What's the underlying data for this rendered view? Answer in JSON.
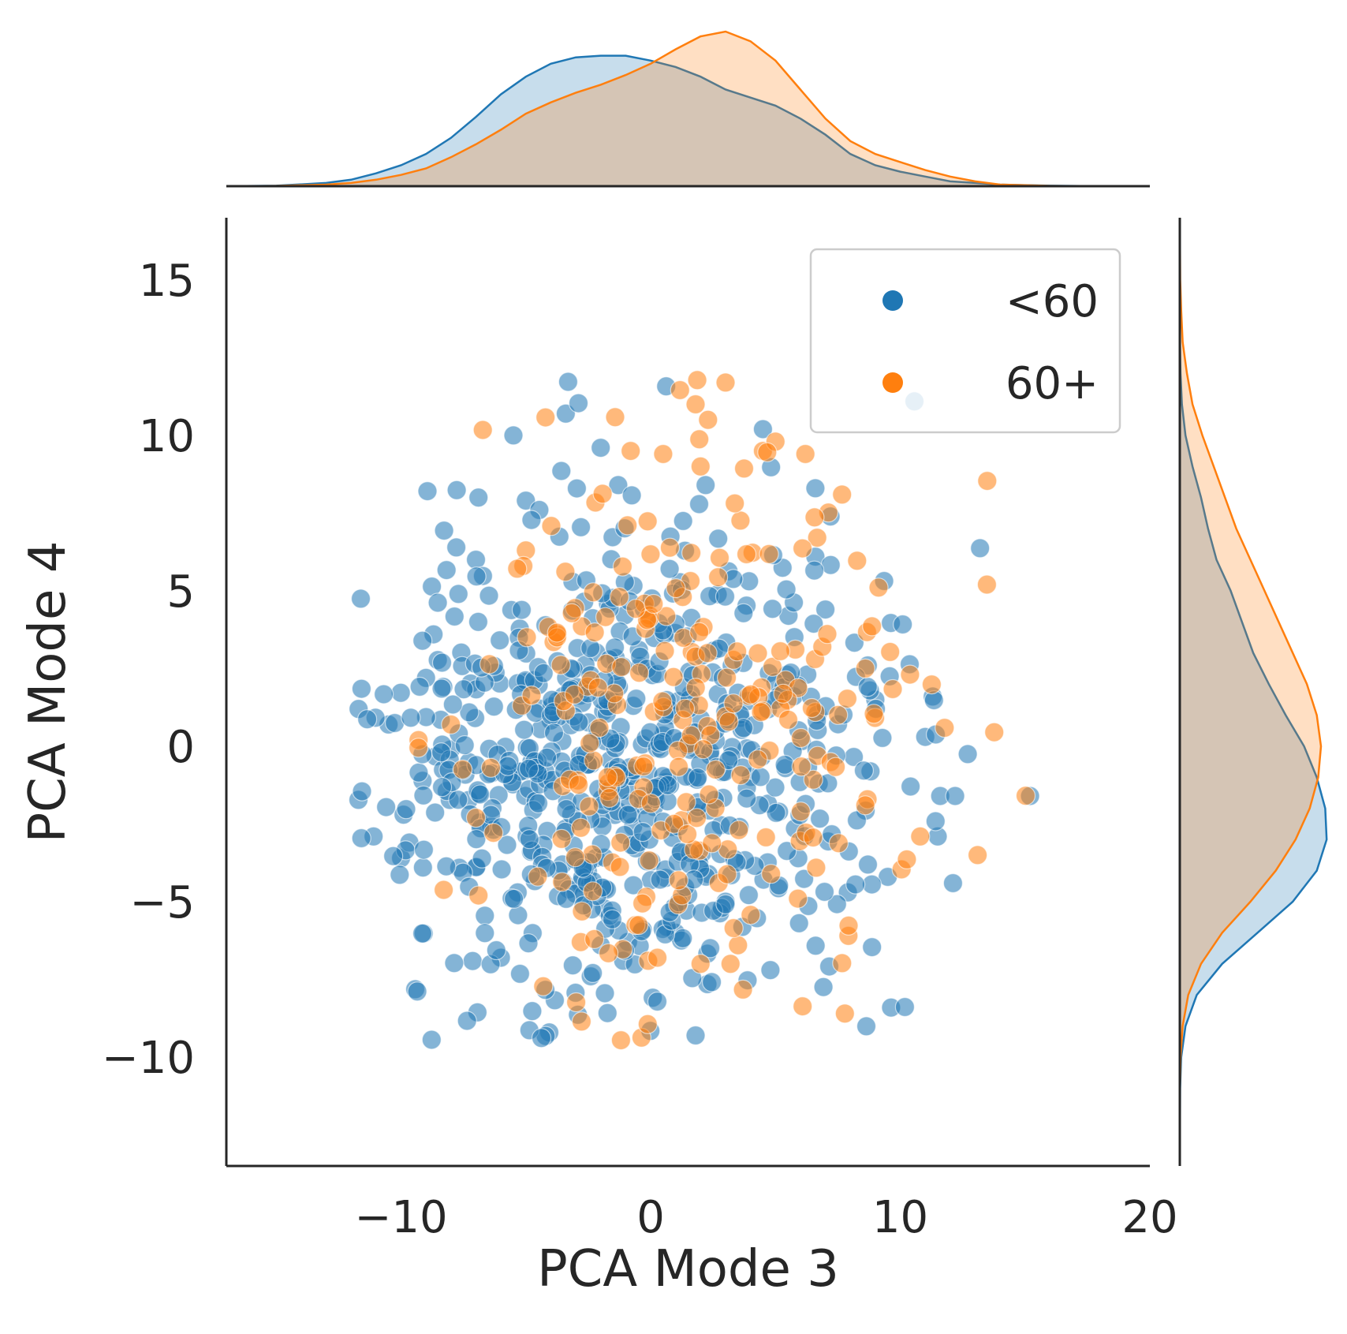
{
  "chart_data": {
    "type": "scatter",
    "subtype": "joint-plot-with-marginal-kde",
    "xlabel": "PCA Mode 3",
    "ylabel": "PCA Mode 4",
    "xlim": [
      -17,
      20
    ],
    "ylim": [
      -13.5,
      17
    ],
    "x_ticks": [
      -10,
      0,
      10,
      20
    ],
    "x_tick_labels": [
      "−10",
      "0",
      "10",
      "20"
    ],
    "y_ticks": [
      -10,
      -5,
      0,
      5,
      10,
      15
    ],
    "y_tick_labels": [
      "−10",
      "−5",
      "0",
      "5",
      "10",
      "15"
    ],
    "grid": false,
    "legend_position": "top-right",
    "point_alpha": 0.55,
    "series": [
      {
        "name": "<60",
        "color": "#1f77b4",
        "n_points": 700,
        "x_mean": -1.3,
        "x_sd": 5.0,
        "y_mean": -0.6,
        "y_sd": 3.9,
        "seed": 11,
        "points": [
          [
            -11.7,
            1.2
          ],
          [
            -10.5,
            0.7
          ],
          [
            -10.0,
            -3.6
          ],
          [
            -11.1,
            -2.9
          ],
          [
            -9.9,
            -2.2
          ],
          [
            -9.0,
            2.2
          ],
          [
            -8.7,
            3.6
          ],
          [
            -8.0,
            -0.1
          ],
          [
            -7.7,
            4.9
          ],
          [
            -7.0,
            6.0
          ],
          [
            -6.9,
            8.0
          ],
          [
            -5.5,
            10.0
          ],
          [
            -3.4,
            10.7
          ],
          [
            -2.0,
            9.6
          ],
          [
            -1.3,
            8.4
          ],
          [
            4.5,
            10.2
          ],
          [
            6.6,
            8.3
          ],
          [
            2.2,
            8.4
          ],
          [
            6.6,
            6.1
          ],
          [
            7.0,
            4.4
          ],
          [
            8.7,
            2.6
          ],
          [
            9.0,
            1.5
          ],
          [
            11.3,
            1.6
          ],
          [
            11.0,
            0.3
          ],
          [
            11.6,
            -1.6
          ],
          [
            12.2,
            -1.6
          ],
          [
            15.2,
            -1.6
          ],
          [
            11.5,
            -2.9
          ],
          [
            9.5,
            -4.2
          ],
          [
            7.9,
            -4.7
          ],
          [
            4.8,
            -7.2
          ],
          [
            1.8,
            -9.3
          ],
          [
            -1.1,
            -6.9
          ],
          [
            -2.4,
            -7.4
          ],
          [
            -6.0,
            -6.8
          ],
          [
            -7.0,
            -3.9
          ],
          [
            -2.0,
            -6.4
          ],
          [
            -5.0,
            7.9
          ],
          [
            1.0,
            -6.0
          ],
          [
            3.0,
            -5.0
          ]
        ]
      },
      {
        "name": "60+",
        "color": "#ff7f0e",
        "n_points": 260,
        "x_mean": 1.8,
        "x_sd": 4.5,
        "y_mean": 1.2,
        "y_sd": 4.2,
        "seed": 29,
        "points": [
          [
            3.0,
            11.7
          ],
          [
            1.8,
            11.0
          ],
          [
            2.3,
            10.5
          ],
          [
            0.5,
            9.4
          ],
          [
            6.2,
            9.4
          ],
          [
            4.5,
            9.5
          ],
          [
            5.0,
            9.8
          ],
          [
            -0.8,
            9.5
          ],
          [
            2.0,
            9.0
          ],
          [
            -5.0,
            6.3
          ],
          [
            -5.1,
            5.8
          ],
          [
            -8.0,
            0.7
          ],
          [
            -9.3,
            0.2
          ],
          [
            -2.8,
            -6.3
          ],
          [
            3.5,
            -6.4
          ],
          [
            2.0,
            -7.0
          ],
          [
            3.2,
            -7.0
          ],
          [
            -0.1,
            -6.9
          ],
          [
            13.1,
            -3.5
          ],
          [
            8.6,
            2.5
          ],
          [
            10.8,
            -2.9
          ],
          [
            -7.0,
            -2.3
          ],
          [
            -6.9,
            -4.8
          ],
          [
            5.9,
            -4.9
          ],
          [
            6.6,
            1.1
          ]
        ]
      }
    ],
    "marginal_x_kde": {
      "x": [
        -17,
        -15,
        -13,
        -12,
        -11,
        -10,
        -9,
        -8,
        -7,
        -6,
        -5,
        -4,
        -3,
        -2,
        -1,
        0,
        1,
        2,
        3,
        4,
        5,
        6,
        7,
        8,
        9,
        10,
        11,
        12,
        13,
        14,
        16,
        18,
        20
      ],
      "series": [
        {
          "name": "<60",
          "density": [
            0,
            0.0003,
            0.002,
            0.004,
            0.008,
            0.013,
            0.02,
            0.03,
            0.043,
            0.057,
            0.068,
            0.076,
            0.08,
            0.081,
            0.081,
            0.078,
            0.074,
            0.068,
            0.06,
            0.055,
            0.05,
            0.042,
            0.032,
            0.02,
            0.013,
            0.009,
            0.006,
            0.003,
            0.002,
            0.001,
            0.0003,
            0,
            0
          ]
        },
        {
          "name": "60+",
          "density": [
            0,
            0.0002,
            0.001,
            0.002,
            0.004,
            0.007,
            0.011,
            0.018,
            0.026,
            0.035,
            0.045,
            0.052,
            0.058,
            0.063,
            0.069,
            0.076,
            0.085,
            0.093,
            0.096,
            0.09,
            0.078,
            0.06,
            0.042,
            0.028,
            0.02,
            0.015,
            0.01,
            0.006,
            0.003,
            0.001,
            0.0002,
            0,
            0
          ]
        }
      ]
    },
    "marginal_y_kde": {
      "y": [
        -13.5,
        -11,
        -10,
        -9,
        -8,
        -7,
        -6,
        -5,
        -4,
        -3,
        -2,
        -1,
        0,
        1,
        2,
        3,
        4,
        5,
        6,
        7,
        8,
        9,
        10,
        11,
        12,
        13,
        14,
        15,
        17
      ],
      "series": [
        {
          "name": "<60",
          "density": [
            0,
            0.0002,
            0.001,
            0.004,
            0.012,
            0.03,
            0.055,
            0.08,
            0.097,
            0.104,
            0.103,
            0.097,
            0.088,
            0.075,
            0.063,
            0.052,
            0.044,
            0.036,
            0.026,
            0.02,
            0.015,
            0.009,
            0.004,
            0.0015,
            0.0005,
            0.0001,
            0,
            0,
            0
          ]
        },
        {
          "name": "60+",
          "density": [
            0,
            0.0001,
            0.0005,
            0.002,
            0.006,
            0.015,
            0.03,
            0.05,
            0.068,
            0.082,
            0.092,
            0.098,
            0.1,
            0.097,
            0.09,
            0.08,
            0.07,
            0.06,
            0.05,
            0.04,
            0.032,
            0.024,
            0.016,
            0.009,
            0.005,
            0.002,
            0.001,
            0.0003,
            0
          ]
        }
      ]
    }
  }
}
